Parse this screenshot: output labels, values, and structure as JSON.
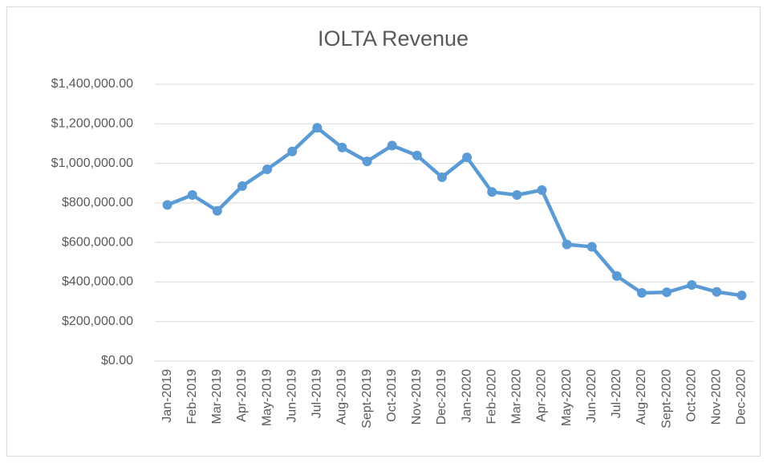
{
  "chart_data": {
    "type": "line",
    "title": "IOLTA Revenue",
    "categories": [
      "Jan-2019",
      "Feb-2019",
      "Mar-2019",
      "Apr-2019",
      "May-2019",
      "Jun-2019",
      "Jul-2019",
      "Aug-2019",
      "Sept-2019",
      "Oct-2019",
      "Nov-2019",
      "Dec-2019",
      "Jan-2020",
      "Feb-2020",
      "Mar-2020",
      "Apr-2020",
      "May-2020",
      "Jun-2020",
      "Jul-2020",
      "Aug-2020",
      "Sept-2020",
      "Oct-2020",
      "Nov-2020",
      "Dec-2020"
    ],
    "series": [
      {
        "name": "IOLTA Revenue",
        "color": "#5b9bd5",
        "values": [
          790000,
          840000,
          760000,
          885000,
          970000,
          1060000,
          1180000,
          1080000,
          1010000,
          1090000,
          1040000,
          930000,
          1030000,
          855000,
          840000,
          865000,
          590000,
          578000,
          430000,
          345000,
          348000,
          385000,
          350000,
          332000
        ]
      }
    ],
    "ylim": [
      0,
      1400000
    ],
    "yticks": [
      {
        "value": 0,
        "label": "$0.00"
      },
      {
        "value": 200000,
        "label": "$200,000.00"
      },
      {
        "value": 400000,
        "label": "$400,000.00"
      },
      {
        "value": 600000,
        "label": "$600,000.00"
      },
      {
        "value": 800000,
        "label": "$800,000.00"
      },
      {
        "value": 1000000,
        "label": "$1,000,000.00"
      },
      {
        "value": 1200000,
        "label": "$1,200,000.00"
      },
      {
        "value": 1400000,
        "label": "$1,400,000.00"
      }
    ],
    "grid": true
  }
}
